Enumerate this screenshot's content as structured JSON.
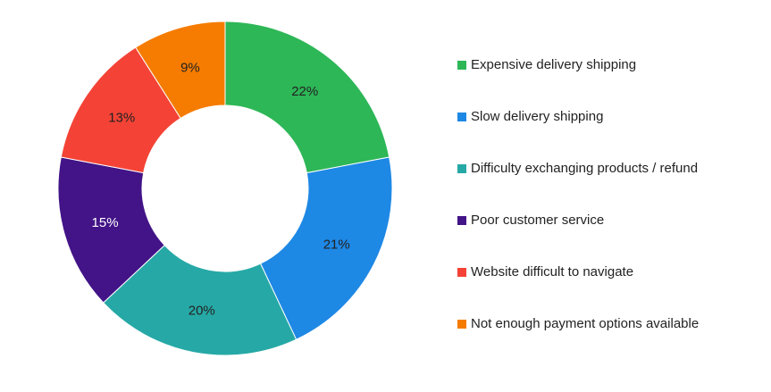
{
  "chart_data": {
    "type": "donut",
    "categories": [
      "Expensive delivery shipping",
      "Slow delivery shipping",
      "Difficulty exchanging products / refund",
      "Poor customer service",
      "Website difficult to navigate",
      "Not enough payment options available"
    ],
    "values": [
      22,
      21,
      20,
      15,
      13,
      9
    ],
    "value_labels": [
      "22%",
      "21%",
      "20%",
      "15%",
      "13%",
      "9%"
    ],
    "colors": [
      "#2db757",
      "#1e88e5",
      "#26a9a6",
      "#421487",
      "#f44336",
      "#f57c00"
    ],
    "legend": "right"
  }
}
